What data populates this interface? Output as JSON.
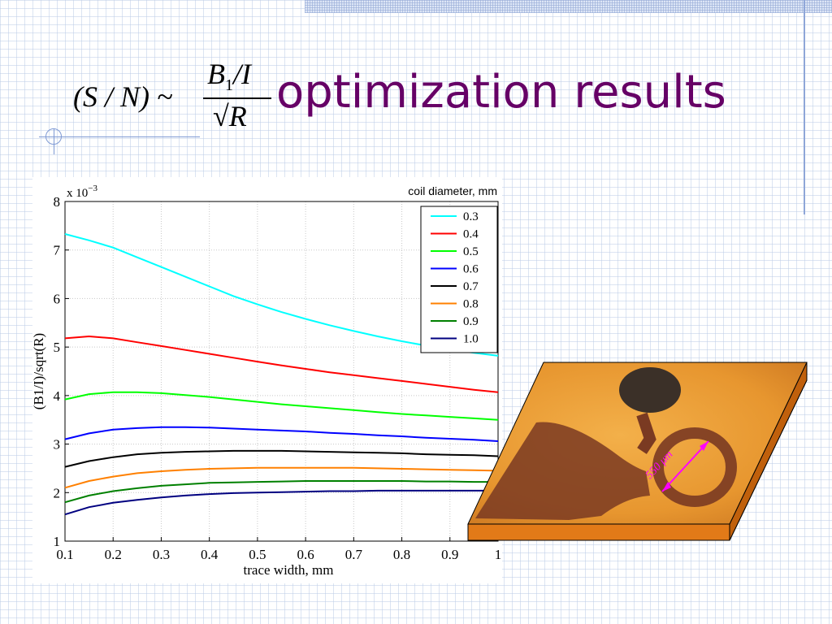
{
  "slide": {
    "title": "optimization results",
    "formula": {
      "lhs": "(S / N) ~",
      "numerator_var": "B",
      "numerator_sub": "1",
      "numerator_rest": "/I",
      "denominator_var": "R"
    }
  },
  "colors": {
    "title": "#660066",
    "grid_lines": "#bccde8",
    "substrate": "#e27a18",
    "coil_label": "#ff00ff"
  },
  "inset_photo": {
    "icon": "coil-photo-on-substrate",
    "dimension_label": "550 μm"
  },
  "chart_data": {
    "type": "line",
    "xlabel": "trace width, mm",
    "ylabel": "(B1/I)/sqrt(R)",
    "y_multiplier_label": "x 10",
    "y_multiplier_exponent": "−3",
    "xlim": [
      0.1,
      1.0
    ],
    "ylim": [
      1,
      8
    ],
    "x_ticks": [
      "0.1",
      "0.2",
      "0.3",
      "0.4",
      "0.5",
      "0.6",
      "0.7",
      "0.8",
      "0.9",
      "1"
    ],
    "y_ticks": [
      "1",
      "2",
      "3",
      "4",
      "5",
      "6",
      "7",
      "8"
    ],
    "grid": true,
    "legend_title": "coil diameter, mm",
    "legend_position": "top-right",
    "x": [
      0.1,
      0.15,
      0.2,
      0.25,
      0.3,
      0.35,
      0.4,
      0.45,
      0.5,
      0.55,
      0.6,
      0.65,
      0.7,
      0.75,
      0.8,
      0.85,
      0.9,
      0.95,
      1.0
    ],
    "series": [
      {
        "name": "0.3",
        "color": "#00ffff",
        "values": [
          7.33,
          7.2,
          7.05,
          6.85,
          6.65,
          6.45,
          6.25,
          6.05,
          5.88,
          5.72,
          5.58,
          5.45,
          5.33,
          5.22,
          5.12,
          5.03,
          4.95,
          4.88,
          4.82
        ]
      },
      {
        "name": "0.4",
        "color": "#ff0000",
        "values": [
          5.18,
          5.22,
          5.18,
          5.1,
          5.02,
          4.94,
          4.86,
          4.78,
          4.7,
          4.62,
          4.55,
          4.48,
          4.42,
          4.36,
          4.3,
          4.24,
          4.18,
          4.12,
          4.07
        ]
      },
      {
        "name": "0.5",
        "color": "#00ff00",
        "values": [
          3.92,
          4.03,
          4.07,
          4.07,
          4.05,
          4.01,
          3.97,
          3.92,
          3.87,
          3.82,
          3.78,
          3.74,
          3.7,
          3.66,
          3.62,
          3.59,
          3.56,
          3.53,
          3.5
        ]
      },
      {
        "name": "0.6",
        "color": "#0000ff",
        "values": [
          3.1,
          3.22,
          3.3,
          3.33,
          3.35,
          3.35,
          3.34,
          3.32,
          3.3,
          3.28,
          3.26,
          3.23,
          3.21,
          3.18,
          3.16,
          3.13,
          3.11,
          3.09,
          3.06
        ]
      },
      {
        "name": "0.7",
        "color": "#000000",
        "values": [
          2.53,
          2.65,
          2.73,
          2.79,
          2.82,
          2.84,
          2.85,
          2.86,
          2.86,
          2.86,
          2.85,
          2.84,
          2.83,
          2.82,
          2.81,
          2.79,
          2.78,
          2.77,
          2.75
        ]
      },
      {
        "name": "0.8",
        "color": "#ff8000",
        "values": [
          2.1,
          2.24,
          2.33,
          2.4,
          2.44,
          2.47,
          2.49,
          2.5,
          2.51,
          2.51,
          2.51,
          2.51,
          2.51,
          2.5,
          2.49,
          2.48,
          2.47,
          2.46,
          2.45
        ]
      },
      {
        "name": "0.9",
        "color": "#008000",
        "values": [
          1.8,
          1.94,
          2.03,
          2.09,
          2.14,
          2.17,
          2.2,
          2.21,
          2.22,
          2.23,
          2.24,
          2.24,
          2.24,
          2.24,
          2.24,
          2.23,
          2.23,
          2.22,
          2.22
        ]
      },
      {
        "name": "1.0",
        "color": "#000080",
        "values": [
          1.55,
          1.7,
          1.79,
          1.85,
          1.9,
          1.94,
          1.97,
          1.99,
          2.0,
          2.01,
          2.02,
          2.03,
          2.03,
          2.04,
          2.04,
          2.04,
          2.04,
          2.04,
          2.04
        ]
      }
    ]
  }
}
